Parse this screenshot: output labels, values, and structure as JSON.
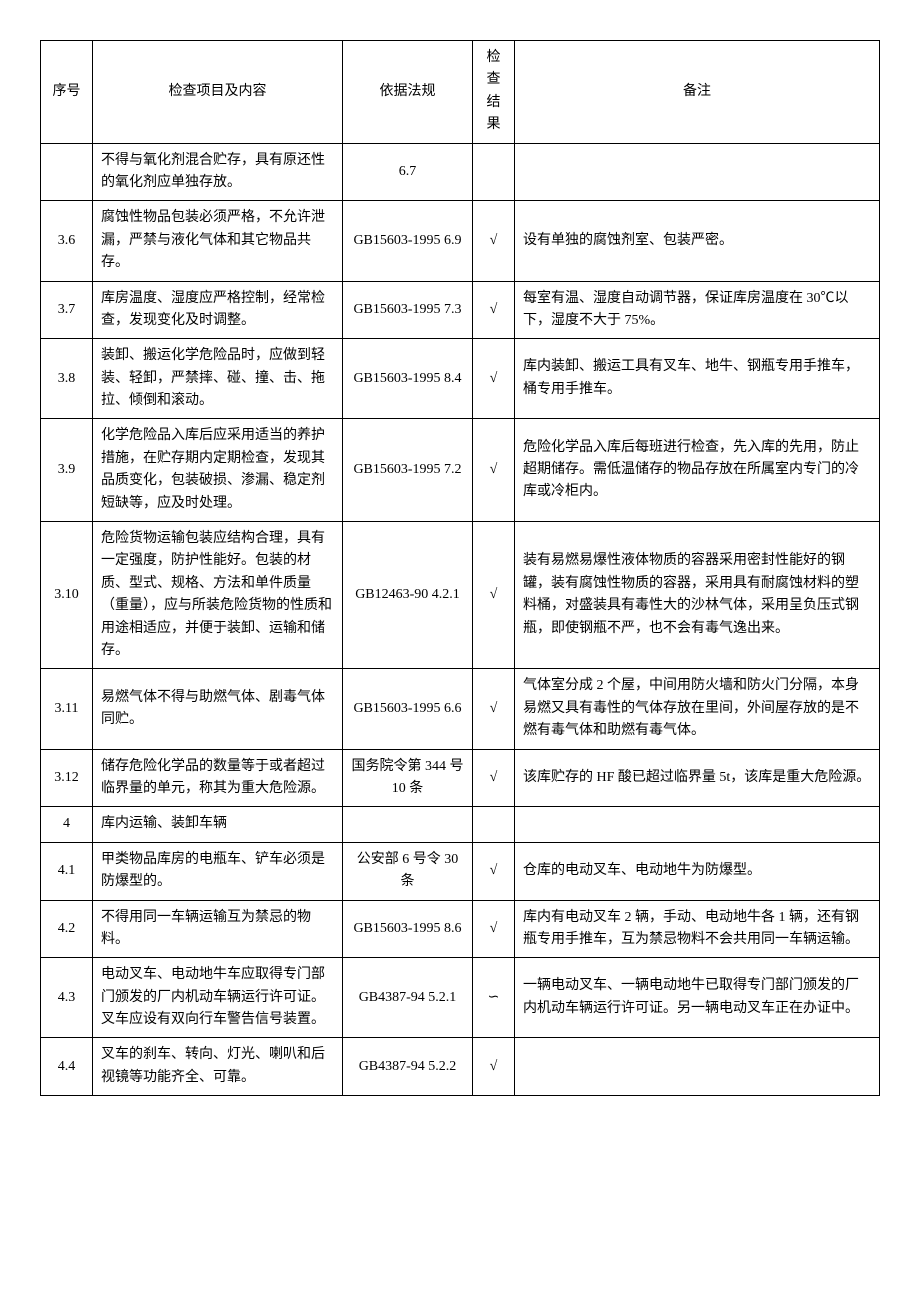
{
  "headers": {
    "seq": "序号",
    "item": "检查项目及内容",
    "law": "依据法规",
    "result": "检查结果",
    "note": "备注"
  },
  "rows": [
    {
      "seq": "",
      "item": "不得与氧化剂混合贮存，具有原还性的氧化剂应单独存放。",
      "law": "6.7",
      "result": "",
      "note": ""
    },
    {
      "seq": "3.6",
      "item": "腐蚀性物品包装必须严格，不允许泄漏，严禁与液化气体和其它物品共存。",
      "law": "GB15603-1995 6.9",
      "result": "√",
      "note": "设有单独的腐蚀剂室、包装严密。"
    },
    {
      "seq": "3.7",
      "item": "库房温度、湿度应严格控制，经常检查，发现变化及时调整。",
      "law": "GB15603-1995 7.3",
      "result": "√",
      "note": "每室有温、湿度自动调节器，保证库房温度在 30℃以下，湿度不大于 75%。"
    },
    {
      "seq": "3.8",
      "item": "装卸、搬运化学危险品时，应做到轻装、轻卸，严禁摔、碰、撞、击、拖拉、倾倒和滚动。",
      "law": "GB15603-1995 8.4",
      "result": "√",
      "note": "库内装卸、搬运工具有叉车、地牛、钢瓶专用手推车，桶专用手推车。"
    },
    {
      "seq": "3.9",
      "item": "化学危险品入库后应采用适当的养护措施，在贮存期内定期检查，发现其品质变化，包装破损、渗漏、稳定剂短缺等，应及时处理。",
      "law": "GB15603-1995 7.2",
      "result": "√",
      "note": "危险化学品入库后每班进行检查，先入库的先用，防止超期储存。需低温储存的物品存放在所属室内专门的冷库或冷柜内。"
    },
    {
      "seq": "3.10",
      "item": "危险货物运输包装应结构合理，具有一定强度，防护性能好。包装的材质、型式、规格、方法和单件质量（重量），应与所装危险货物的性质和用途相适应，并便于装卸、运输和储存。",
      "law": "GB12463-90 4.2.1",
      "result": "√",
      "note": "装有易燃易爆性液体物质的容器采用密封性能好的钢罐，装有腐蚀性物质的容器，采用具有耐腐蚀材料的塑料桶，对盛装具有毒性大的沙林气体，采用呈负压式钢瓶，即使钢瓶不严，也不会有毒气逸出来。"
    },
    {
      "seq": "3.11",
      "item": "易燃气体不得与助燃气体、剧毒气体同贮。",
      "law": "GB15603-1995 6.6",
      "result": "√",
      "note": "气体室分成 2 个屋，中间用防火墙和防火门分隔，本身易燃又具有毒性的气体存放在里间，外间屋存放的是不燃有毒气体和助燃有毒气体。"
    },
    {
      "seq": "3.12",
      "item": "储存危险化学品的数量等于或者超过临界量的单元，称其为重大危险源。",
      "law": "国务院令第 344 号 10 条",
      "result": "√",
      "note": "该库贮存的 HF 酸已超过临界量 5t，该库是重大危险源。"
    },
    {
      "seq": "4",
      "item": "库内运输、装卸车辆",
      "law": "",
      "result": "",
      "note": ""
    },
    {
      "seq": "4.1",
      "item": "甲类物品库房的电瓶车、铲车必须是防爆型的。",
      "law": "公安部 6 号令 30 条",
      "result": "√",
      "note": "仓库的电动叉车、电动地牛为防爆型。"
    },
    {
      "seq": "4.2",
      "item": "不得用同一车辆运输互为禁忌的物料。",
      "law": "GB15603-1995 8.6",
      "result": "√",
      "note": "库内有电动叉车 2 辆，手动、电动地牛各 1 辆，还有钢瓶专用手推车，互为禁忌物料不会共用同一车辆运输。"
    },
    {
      "seq": "4.3",
      "item": "电动叉车、电动地牛车应取得专门部门颁发的厂内机动车辆运行许可证。叉车应设有双向行车警告信号装置。",
      "law": "GB4387-94 5.2.1",
      "result": "∽",
      "note": "一辆电动叉车、一辆电动地牛已取得专门部门颁发的厂内机动车辆运行许可证。另一辆电动叉车正在办证中。"
    },
    {
      "seq": "4.4",
      "item": "叉车的刹车、转向、灯光、喇叭和后视镜等功能齐全、可靠。",
      "law": "GB4387-94 5.2.2",
      "result": "√",
      "note": ""
    }
  ]
}
